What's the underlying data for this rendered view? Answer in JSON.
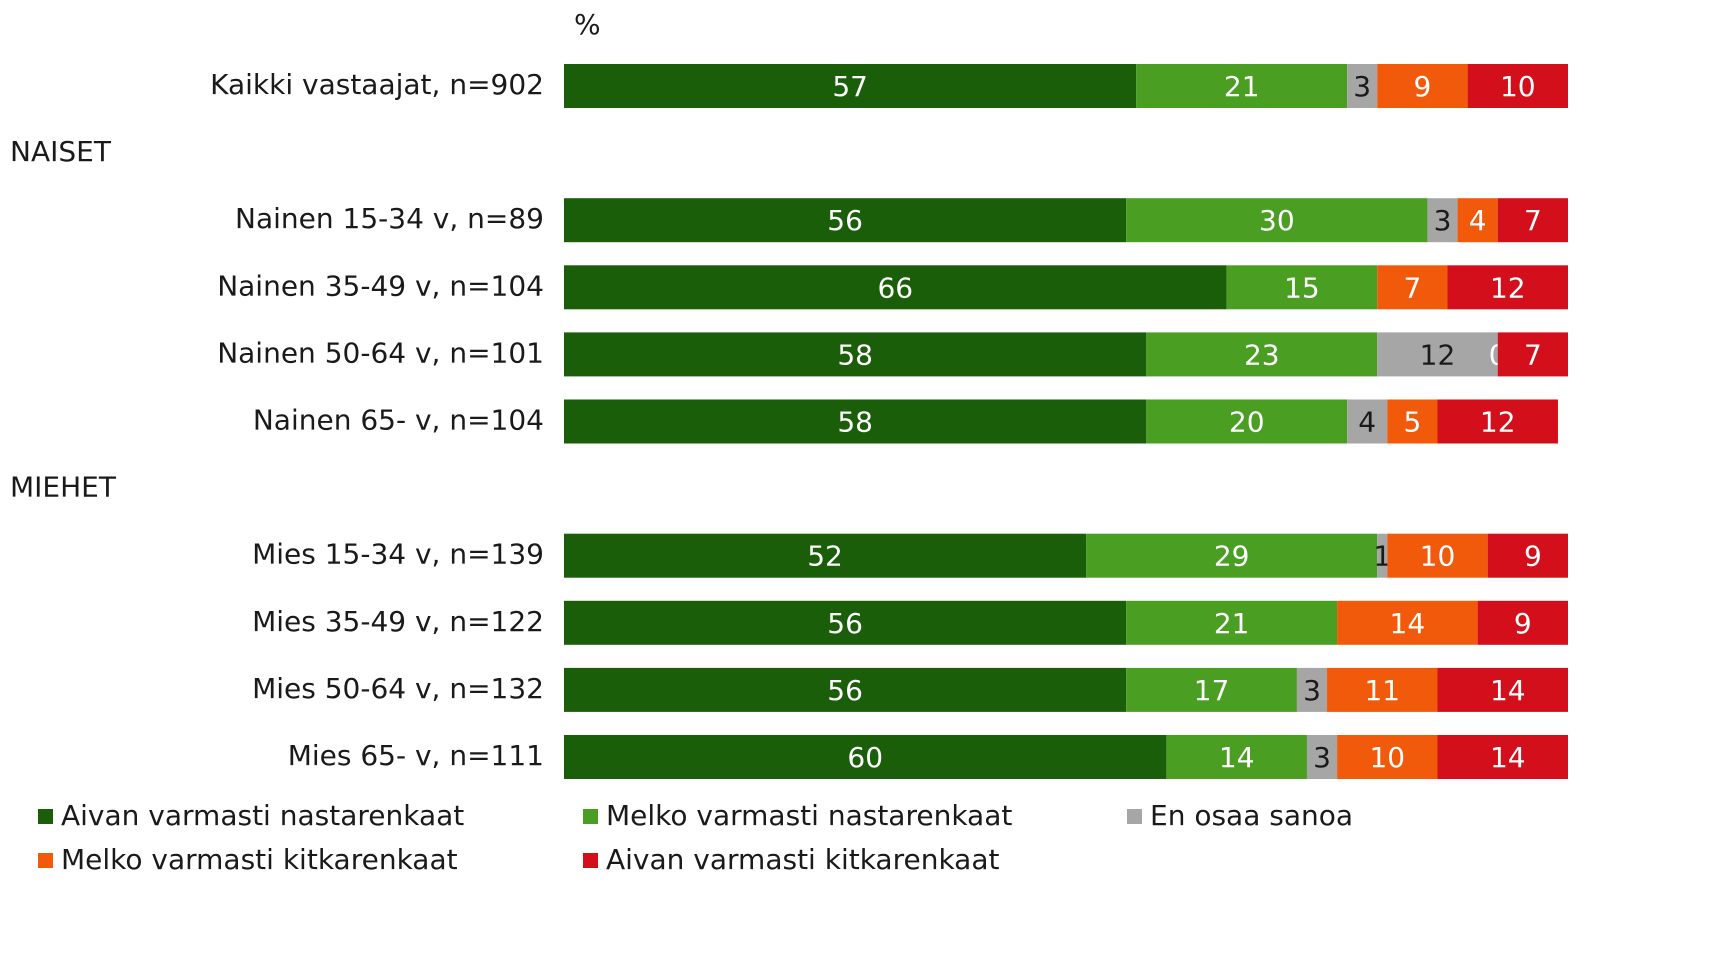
{
  "chart_data": {
    "type": "stacked_bar_horizontal",
    "unit": "%",
    "categories": [
      "Kaikki vastaajat, n=902",
      "NAISET",
      "Nainen 15-34 v, n=89",
      "Nainen 35-49 v, n=104",
      "Nainen 50-64 v, n=101",
      "Nainen 65- v, n=104",
      "MIEHET",
      "Mies 15-34 v, n=139",
      "Mies 35-49 v, n=122",
      "Mies 50-64 v, n=132",
      "Mies 65- v, n=111"
    ],
    "series": [
      {
        "name": "Aivan varmasti nastarenkaat",
        "color": "#1a5e0a",
        "label_color": "#ffffff",
        "values": [
          57,
          null,
          56,
          66,
          58,
          58,
          null,
          52,
          56,
          56,
          60
        ]
      },
      {
        "name": "Melko varmasti nastarenkaat",
        "color": "#4a9e22",
        "label_color": "#ffffff",
        "values": [
          21,
          null,
          30,
          15,
          23,
          20,
          null,
          29,
          21,
          17,
          14
        ]
      },
      {
        "name": "En osaa sanoa",
        "color": "#a6a6a6",
        "label_color": "#1a1a1a",
        "values": [
          3,
          null,
          3,
          null,
          12,
          4,
          null,
          1,
          null,
          3,
          3
        ]
      },
      {
        "name": "Melko varmasti kitkarenkaat",
        "color": "#f05a0a",
        "label_color": "#ffffff",
        "values": [
          9,
          null,
          4,
          7,
          0,
          5,
          null,
          10,
          14,
          11,
          10
        ]
      },
      {
        "name": "Aivan varmasti kitkarenkaat",
        "color": "#d40f1c",
        "label_color": "#ffffff",
        "values": [
          10,
          null,
          7,
          12,
          7,
          12,
          null,
          9,
          9,
          14,
          14
        ]
      }
    ],
    "xlim": [
      0,
      100
    ]
  }
}
